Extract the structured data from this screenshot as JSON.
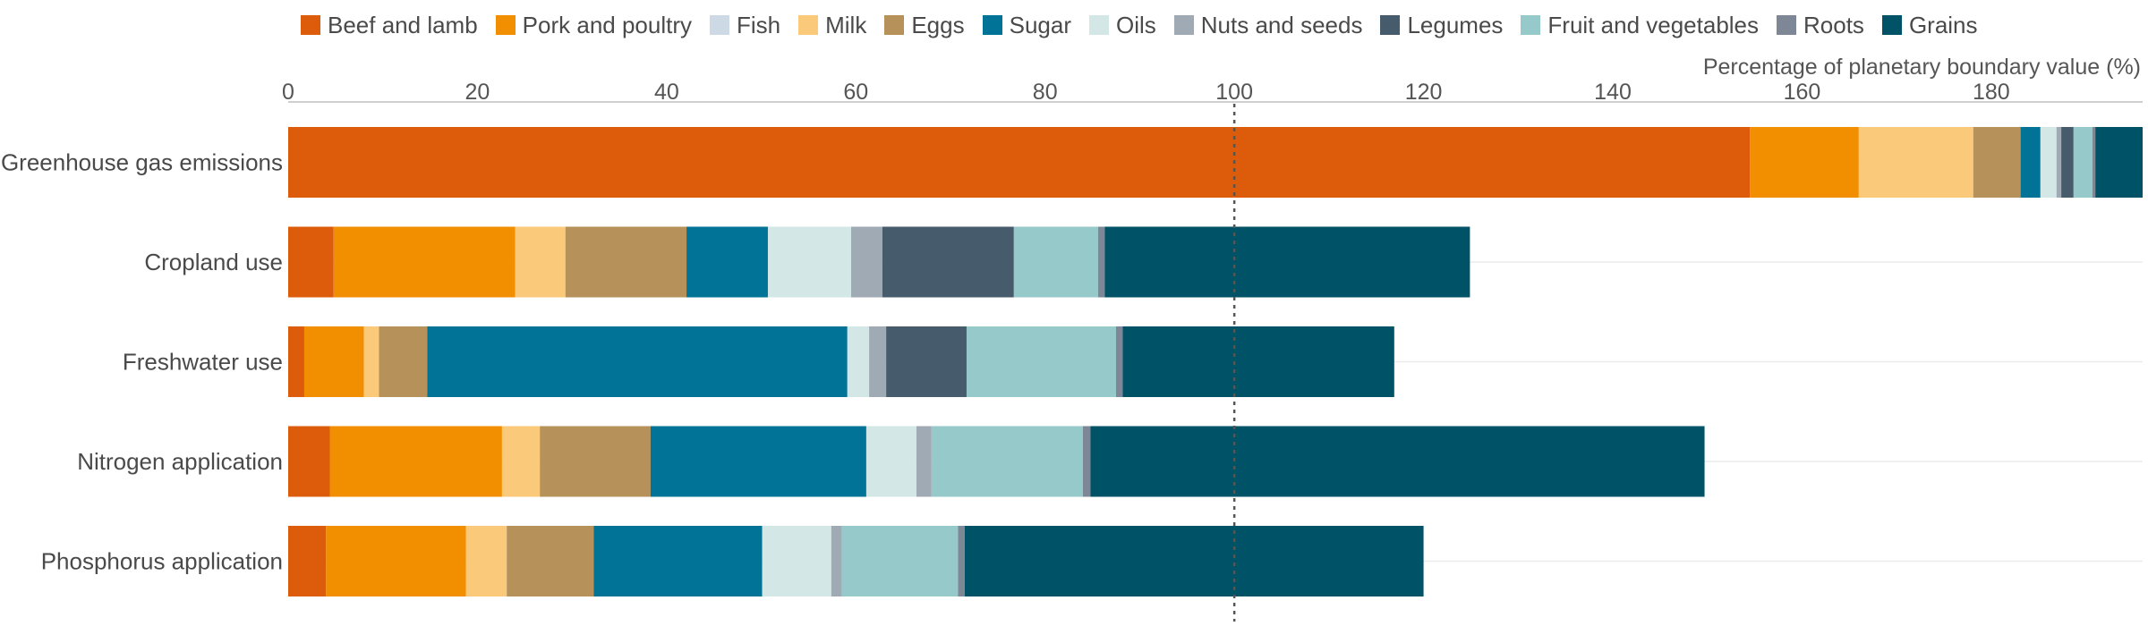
{
  "chart_data": {
    "type": "bar",
    "orientation": "horizontal",
    "stacked": true,
    "xlabel": "Percentage of planetary boundary value (%)",
    "xlim": [
      0,
      196
    ],
    "xticks": [
      0,
      20,
      40,
      60,
      80,
      100,
      120,
      140,
      160,
      180
    ],
    "reference_line": 100,
    "grid": true,
    "legend_position": "top",
    "categories": [
      "Greenhouse gas emissions",
      "Cropland use",
      "Freshwater use",
      "Nitrogen application",
      "Phosphorus application"
    ],
    "series": [
      {
        "name": "Beef and lamb",
        "color": "#DD5C0B",
        "values": [
          154.5,
          4.8,
          1.7,
          4.4,
          4.0
        ]
      },
      {
        "name": "Pork and poultry",
        "color": "#F18F00",
        "values": [
          11.5,
          19.2,
          6.3,
          18.2,
          14.8
        ]
      },
      {
        "name": "Fish",
        "color": "#CDD9E5",
        "values": [
          0.0,
          0.0,
          0.0,
          0.0,
          0.0
        ]
      },
      {
        "name": "Milk",
        "color": "#FBC97A",
        "values": [
          12.1,
          5.3,
          1.6,
          4.0,
          4.3
        ]
      },
      {
        "name": "Eggs",
        "color": "#B6915A",
        "values": [
          5.0,
          12.8,
          5.1,
          11.7,
          9.2
        ]
      },
      {
        "name": "Sugar",
        "color": "#007396",
        "values": [
          2.1,
          8.6,
          44.4,
          22.8,
          17.8
        ]
      },
      {
        "name": "Oils",
        "color": "#D3E8E6",
        "values": [
          1.7,
          8.8,
          2.3,
          5.3,
          7.3
        ]
      },
      {
        "name": "Nuts and seeds",
        "color": "#A0AAB5",
        "values": [
          0.5,
          3.3,
          1.8,
          1.6,
          1.1
        ]
      },
      {
        "name": "Legumes",
        "color": "#465B6C",
        "values": [
          1.3,
          13.9,
          8.5,
          0.0,
          0.0
        ]
      },
      {
        "name": "Fruit and vegetables",
        "color": "#96C9C9",
        "values": [
          2.0,
          8.9,
          15.8,
          16.0,
          12.3
        ]
      },
      {
        "name": "Roots",
        "color": "#7E8795",
        "values": [
          0.3,
          0.7,
          0.7,
          0.8,
          0.7
        ]
      },
      {
        "name": "Grains",
        "color": "#005266",
        "values": [
          5.0,
          38.6,
          28.7,
          64.9,
          48.5
        ]
      }
    ]
  }
}
